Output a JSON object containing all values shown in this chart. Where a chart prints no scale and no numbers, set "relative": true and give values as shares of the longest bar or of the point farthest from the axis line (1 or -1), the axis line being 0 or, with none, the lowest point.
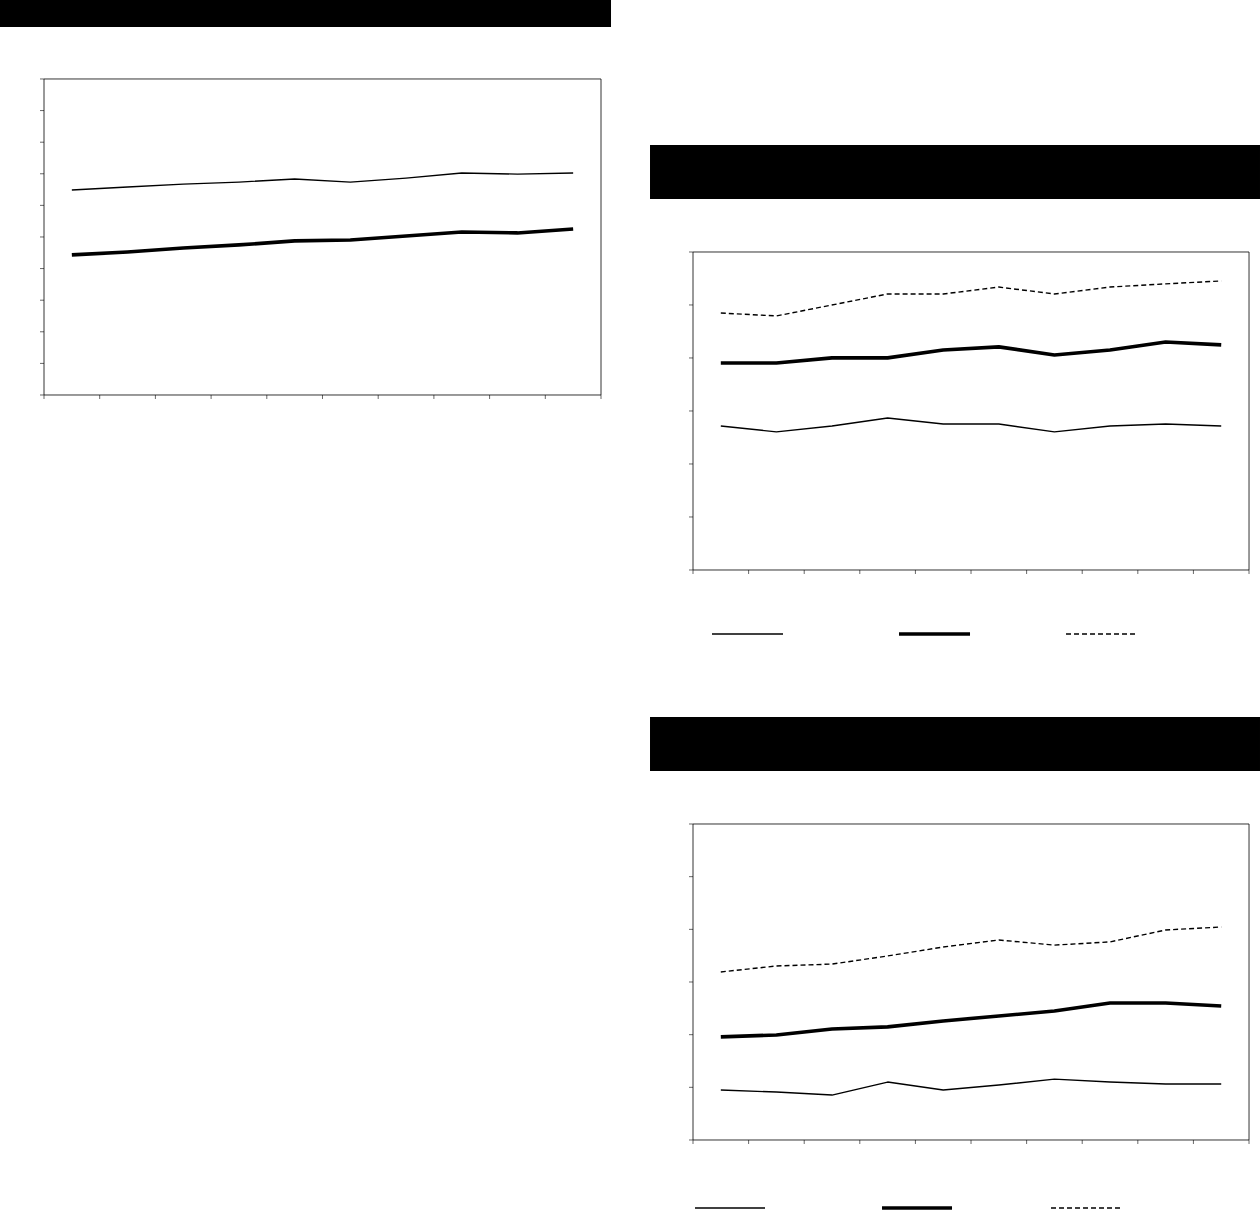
{
  "chart_data": [
    {
      "type": "line",
      "relative": true,
      "categories": [
        null,
        null,
        null,
        null,
        null,
        null,
        null,
        null,
        null,
        null
      ],
      "series": [
        {
          "color": "#000000",
          "line_style": "solid",
          "values": [
            0.923,
            0.937,
            0.95,
            0.959,
            0.973,
            0.959,
            0.977,
            1.0,
            0.995,
            1.0
          ]
        },
        {
          "color": "#000000",
          "line_style": "solid",
          "values": [
            0.631,
            0.644,
            0.662,
            0.676,
            0.694,
            0.698,
            0.716,
            0.734,
            0.73,
            0.748
          ]
        }
      ],
      "grid": false,
      "marker": "none"
    },
    {
      "type": "line",
      "relative": true,
      "categories": [
        null,
        null,
        null,
        null,
        null,
        null,
        null,
        null,
        null,
        null
      ],
      "series": [
        {
          "color": "#000000",
          "line_style": "solid",
          "values": [
            0.498,
            0.478,
            0.498,
            0.526,
            0.505,
            0.505,
            0.478,
            0.498,
            0.505,
            0.498
          ]
        },
        {
          "color": "#000000",
          "line_style": "solid",
          "values": [
            0.716,
            0.716,
            0.734,
            0.734,
            0.761,
            0.772,
            0.744,
            0.761,
            0.789,
            0.779
          ]
        },
        {
          "color": "#000000",
          "line_style": "dashed",
          "values": [
            0.889,
            0.879,
            0.917,
            0.955,
            0.955,
            0.979,
            0.955,
            0.979,
            0.99,
            1.0
          ]
        }
      ],
      "grid": false,
      "marker": "none"
    },
    {
      "type": "line",
      "relative": true,
      "categories": [
        null,
        null,
        null,
        null,
        null,
        null,
        null,
        null,
        null,
        null
      ],
      "series": [
        {
          "color": "#000000",
          "line_style": "solid",
          "values": [
            0.235,
            0.225,
            0.211,
            0.272,
            0.235,
            0.258,
            0.286,
            0.272,
            0.263,
            0.263
          ]
        },
        {
          "color": "#000000",
          "line_style": "solid",
          "values": [
            0.484,
            0.493,
            0.521,
            0.531,
            0.559,
            0.582,
            0.606,
            0.643,
            0.643,
            0.629
          ]
        },
        {
          "color": "#000000",
          "line_style": "dashed",
          "values": [
            0.789,
            0.817,
            0.826,
            0.864,
            0.906,
            0.939,
            0.915,
            0.93,
            0.986,
            1.0
          ]
        }
      ],
      "grid": false,
      "marker": "none"
    }
  ]
}
